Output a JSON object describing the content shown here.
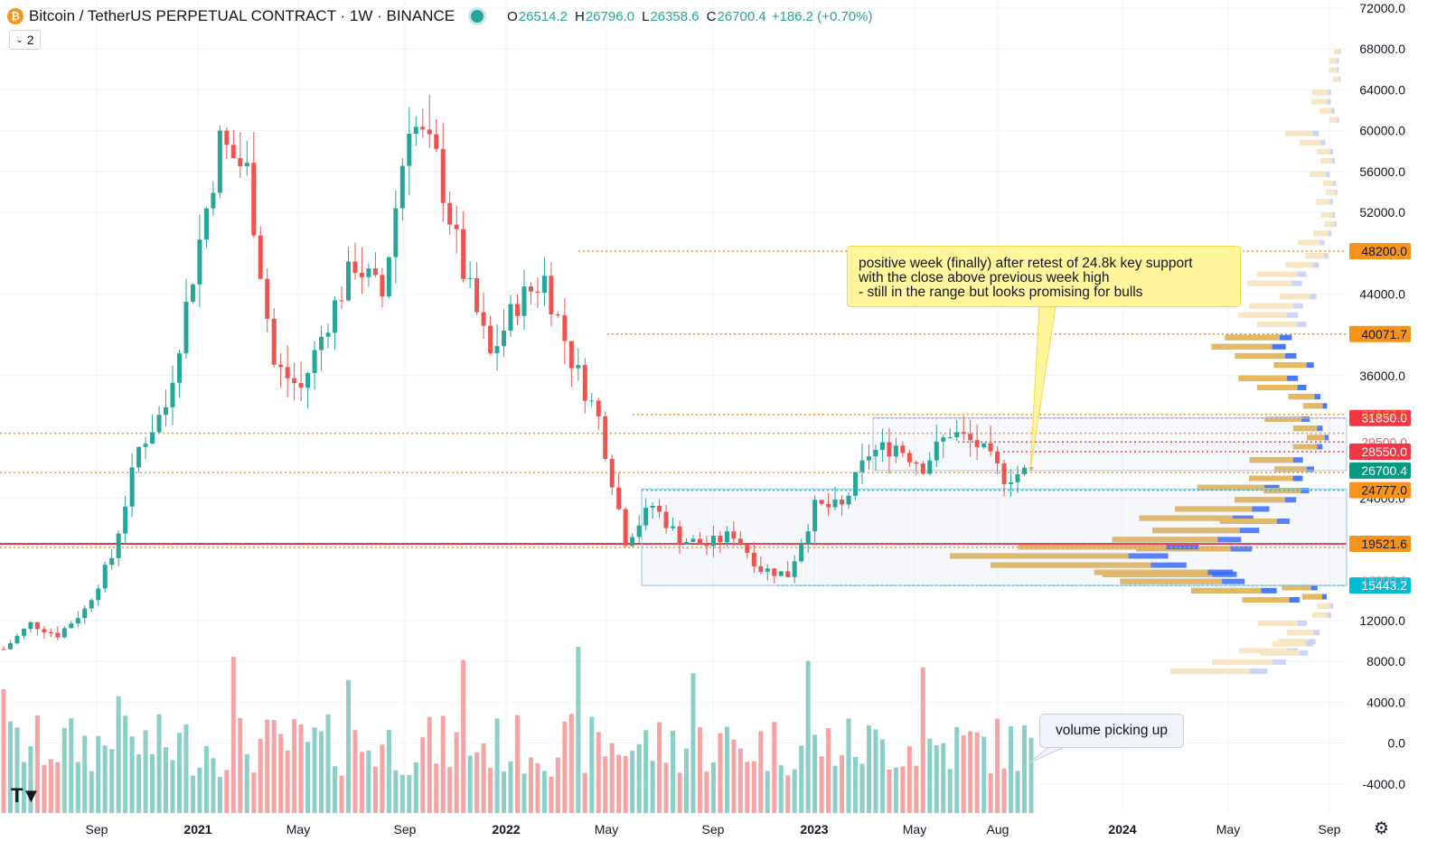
{
  "header": {
    "title": "Bitcoin / TetherUS PERPETUAL CONTRACT · 1W · BINANCE",
    "ohlc": [
      {
        "label": "O",
        "value": "26514.2"
      },
      {
        "label": "H",
        "value": "26796.0"
      },
      {
        "label": "L",
        "value": "26358.6"
      },
      {
        "label": "C",
        "value": "26700.4"
      }
    ],
    "change": "+186.2 (+0.70%)"
  },
  "indicator_toggle": {
    "count": "2"
  },
  "callouts": {
    "main_lines": [
      "positive week (finally) after retest of 24.8k key support",
      "with the close above previous week high",
      "- still in the range but looks promising for bulls"
    ],
    "volume": "volume picking up"
  },
  "price_axis": {
    "ticks": [
      "72000.0",
      "68000.0",
      "64000.0",
      "60000.0",
      "56000.0",
      "52000.0",
      "44000.0",
      "36000.0",
      "24000.0",
      "12000.0",
      "8000.0",
      "4000.0",
      "0.0",
      "-4000.0"
    ],
    "badges": [
      {
        "value": "48200.0",
        "color": "#f7931a"
      },
      {
        "value": "40071.7",
        "color": "#f7931a"
      },
      {
        "value": "31850.0",
        "color": "#f23645"
      },
      {
        "value": "28550.0",
        "color": "#f23645"
      },
      {
        "value": "26700.4",
        "color": "#089981"
      },
      {
        "value": "24777.0",
        "color": "#f7931a"
      },
      {
        "value": "19521.6",
        "color": "#f7931a"
      },
      {
        "value": "15443.2",
        "color": "#00bcd4"
      }
    ],
    "partial_labels": [
      "32187.5",
      "29500.0",
      "16000.0"
    ]
  },
  "time_axis": [
    "Sep",
    "2021",
    "May",
    "Sep",
    "2022",
    "May",
    "Sep",
    "2023",
    "May",
    "Aug",
    "2024",
    "May",
    "Sep"
  ],
  "colors": {
    "up": "#26a69a",
    "down": "#ef5350",
    "orange": "#f7931a",
    "blue": "#2962ff"
  },
  "chart_data": {
    "type": "candlestick",
    "symbol": "BTCUSDT.P",
    "timeframe": "1W",
    "ylim": [
      -6000,
      72000
    ],
    "weekly_close_path": [
      [
        "2020-07",
        9200
      ],
      [
        "2020-08",
        11700
      ],
      [
        "2020-09",
        10600
      ],
      [
        "2020-10",
        13100
      ],
      [
        "2020-11",
        18200
      ],
      [
        "2020-12",
        28900
      ],
      [
        "2021-01",
        33000
      ],
      [
        "2021-02",
        46000
      ],
      [
        "2021-03",
        58800
      ],
      [
        "2021-04",
        56000
      ],
      [
        "2021-05",
        37000
      ],
      [
        "2021-06",
        34700
      ],
      [
        "2021-07",
        41500
      ],
      [
        "2021-08",
        47100
      ],
      [
        "2021-09",
        43800
      ],
      [
        "2021-10",
        61300
      ],
      [
        "2021-11",
        57000
      ],
      [
        "2021-12",
        46200
      ],
      [
        "2022-01",
        37900
      ],
      [
        "2022-02",
        43200
      ],
      [
        "2022-03",
        45500
      ],
      [
        "2022-04",
        37600
      ],
      [
        "2022-05",
        31800
      ],
      [
        "2022-06",
        19900
      ],
      [
        "2022-07",
        23300
      ],
      [
        "2022-08",
        20000
      ],
      [
        "2022-09",
        19400
      ],
      [
        "2022-10",
        20500
      ],
      [
        "2022-11",
        17100
      ],
      [
        "2022-12",
        16500
      ],
      [
        "2023-01",
        23100
      ],
      [
        "2023-02",
        23100
      ],
      [
        "2023-03",
        28400
      ],
      [
        "2023-04",
        29200
      ],
      [
        "2023-05",
        27200
      ],
      [
        "2023-06",
        30500
      ],
      [
        "2023-07",
        29200
      ],
      [
        "2023-08",
        26100
      ],
      [
        "2023-09",
        26700
      ]
    ],
    "levels": [
      48200.0,
      40071.7,
      32187.5,
      31850.0,
      29500.0,
      28550.0,
      26700.4,
      24777.0,
      19521.6,
      15443.2
    ]
  }
}
